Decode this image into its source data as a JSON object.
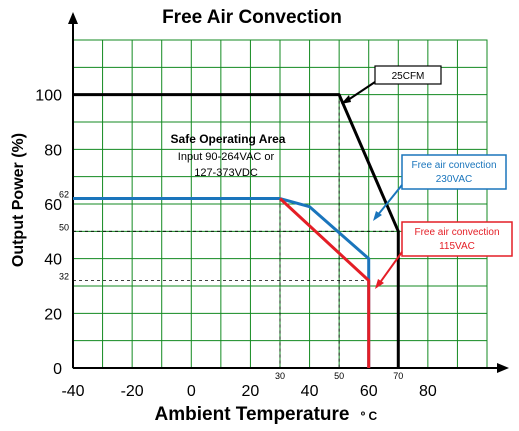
{
  "chart_data": {
    "type": "line",
    "title": "Free Air Convection",
    "xlabel": "Ambient Temperature",
    "xlabel_unit": "º C",
    "ylabel": "Output Power (%)",
    "xlim": [
      -40,
      100
    ],
    "ylim": [
      0,
      120
    ],
    "grid": true,
    "x_ticks": [
      "-40",
      "-20",
      "0",
      "20",
      "40",
      "60",
      "80"
    ],
    "x_ticks_minor": [
      "30",
      "50",
      "70"
    ],
    "y_ticks": [
      "0",
      "20",
      "40",
      "60",
      "80",
      "100"
    ],
    "y_ticks_minor": [
      "62",
      "50",
      "32"
    ],
    "series": [
      {
        "name": "25CFM",
        "color": "#000000",
        "points": [
          [
            -40,
            100
          ],
          [
            50,
            100
          ],
          [
            70,
            50
          ],
          [
            70,
            0
          ]
        ]
      },
      {
        "name": "Free air convection 230VAC",
        "color": "#1a75bc",
        "points": [
          [
            -40,
            62
          ],
          [
            30,
            62
          ],
          [
            40,
            59
          ],
          [
            60,
            40
          ],
          [
            60,
            0
          ]
        ]
      },
      {
        "name": "Free air convection 115VAC",
        "color": "#e41e26",
        "points": [
          [
            30,
            62
          ],
          [
            60,
            32
          ],
          [
            60,
            0
          ]
        ]
      }
    ],
    "annotations": {
      "safe_title": "Safe Operating Area",
      "safe_line1": "Input 90-264VAC or",
      "safe_line2": "127-373VDC",
      "cfm_label": "25CFM",
      "blue_line1": "Free air convection",
      "blue_line2": "230VAC",
      "red_line1": "Free air convection",
      "red_line2": "115VAC"
    }
  }
}
